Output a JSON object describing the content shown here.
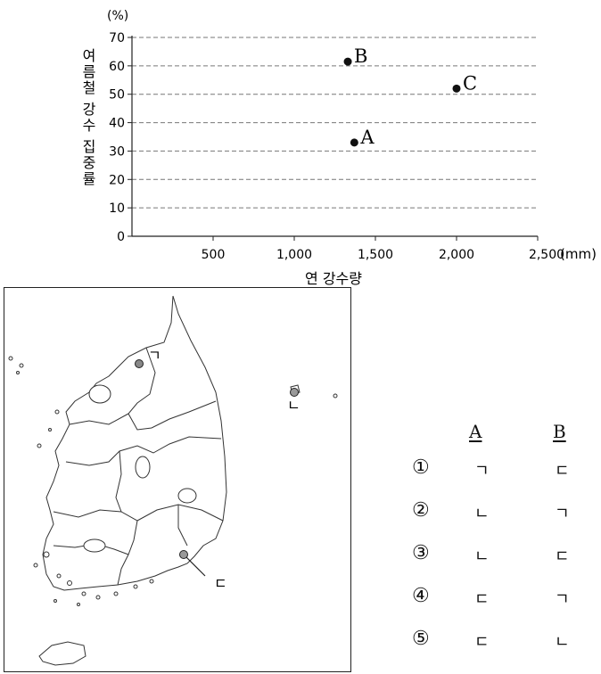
{
  "chart_data": {
    "type": "scatter",
    "ylabel": "여름철 강수 집중률",
    "yunit": "(%)",
    "xlabel": "연 강수량",
    "xunit": "(mm)",
    "xlim": [
      0,
      2500
    ],
    "ylim": [
      0,
      70
    ],
    "xticks": [
      "500",
      "1,000",
      "1,500",
      "2,000",
      "2,500"
    ],
    "yticks": [
      "0",
      "10",
      "20",
      "30",
      "40",
      "50",
      "60",
      "70"
    ],
    "grid": "horizontal dashed",
    "points": [
      {
        "label": "A",
        "x": 1370,
        "y": 33
      },
      {
        "label": "B",
        "x": 1330,
        "y": 61.5
      },
      {
        "label": "C",
        "x": 2000,
        "y": 52
      }
    ]
  },
  "map": {
    "markers": [
      {
        "label": "ㄱ"
      },
      {
        "label": "ㄴ"
      },
      {
        "label": "ㄷ"
      }
    ]
  },
  "choices": {
    "header_a": "A",
    "header_b": "B",
    "rows": [
      {
        "num": "①",
        "a": "ㄱ",
        "b": "ㄷ"
      },
      {
        "num": "②",
        "a": "ㄴ",
        "b": "ㄱ"
      },
      {
        "num": "③",
        "a": "ㄴ",
        "b": "ㄷ"
      },
      {
        "num": "④",
        "a": "ㄷ",
        "b": "ㄱ"
      },
      {
        "num": "⑤",
        "a": "ㄷ",
        "b": "ㄴ"
      }
    ]
  }
}
